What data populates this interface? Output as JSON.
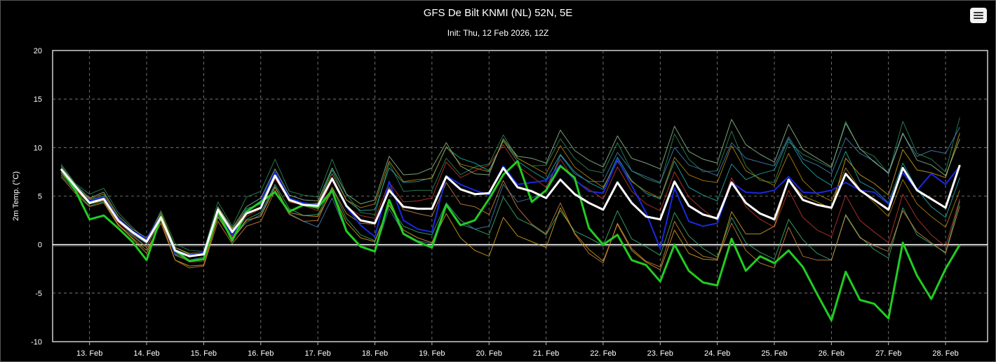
{
  "header": {
    "title": "GFS De Bilt KNMI (NL) 52N, 5E",
    "subtitle": "Init: Thu, 12 Feb 2026, 12Z"
  },
  "menu": {
    "icon": "hamburger-menu-icon"
  },
  "chart_data": {
    "type": "line",
    "ylabel": "2m Temp. (°C)",
    "xlabel": "",
    "ylim": [
      -10,
      20
    ],
    "yticks": [
      -10,
      -5,
      0,
      5,
      10,
      15,
      20
    ],
    "x_unit": "6-hourly steps from 12 Feb 2026 12Z",
    "xticks": [
      {
        "label": "13. Feb",
        "step": 2
      },
      {
        "label": "14. Feb",
        "step": 6
      },
      {
        "label": "15. Feb",
        "step": 10
      },
      {
        "label": "16. Feb",
        "step": 14
      },
      {
        "label": "17. Feb",
        "step": 18
      },
      {
        "label": "18. Feb",
        "step": 22
      },
      {
        "label": "19. Feb",
        "step": 26
      },
      {
        "label": "20. Feb",
        "step": 30
      },
      {
        "label": "21. Feb",
        "step": 34
      },
      {
        "label": "22. Feb",
        "step": 38
      },
      {
        "label": "23. Feb",
        "step": 42
      },
      {
        "label": "24. Feb",
        "step": 46
      },
      {
        "label": "25. Feb",
        "step": 50
      },
      {
        "label": "26. Feb",
        "step": 54
      },
      {
        "label": "27. Feb",
        "step": 58
      },
      {
        "label": "28. Feb",
        "step": 62
      }
    ],
    "grid": true,
    "zero_line": true,
    "background": "#000000",
    "series": [
      {
        "role": "mean",
        "color": "#ffffff",
        "values": [
          7.8,
          6.0,
          4.3,
          4.7,
          2.5,
          1.3,
          0.3,
          2.8,
          -0.6,
          -1.2,
          -1.0,
          3.6,
          1.3,
          3.2,
          3.8,
          7.1,
          4.6,
          4.1,
          4.0,
          6.8,
          4.0,
          2.5,
          2.2,
          5.6,
          3.9,
          3.7,
          3.7,
          7.0,
          5.7,
          5.2,
          5.3,
          7.9,
          5.9,
          5.5,
          4.8,
          6.7,
          5.2,
          4.3,
          3.6,
          6.4,
          4.3,
          2.9,
          2.6,
          6.5,
          4.0,
          3.1,
          2.7,
          6.4,
          4.3,
          3.2,
          2.6,
          6.7,
          4.6,
          4.1,
          3.8,
          7.3,
          5.6,
          4.6,
          3.6,
          7.9,
          5.6,
          4.7,
          3.8,
          8.2
        ]
      },
      {
        "role": "control",
        "color": "#22cc22",
        "values": [
          7.8,
          5.6,
          2.6,
          3.0,
          1.7,
          0.3,
          -1.6,
          2.9,
          -0.6,
          -1.7,
          -1.5,
          3.4,
          0.4,
          3.4,
          4.4,
          5.4,
          3.4,
          4.1,
          3.8,
          5.6,
          1.4,
          -0.2,
          -0.7,
          4.6,
          1.1,
          0.3,
          -0.3,
          4.1,
          2.0,
          2.5,
          4.7,
          7.2,
          8.6,
          4.4,
          5.6,
          8.1,
          6.9,
          1.7,
          0.0,
          1.0,
          -1.6,
          -2.1,
          -3.8,
          0.0,
          -2.7,
          -3.9,
          -4.2,
          0.6,
          -2.7,
          -1.2,
          -1.9,
          -0.6,
          -2.3,
          -5.1,
          -7.8,
          -2.8,
          -5.7,
          -6.1,
          -7.6,
          0.2,
          -3.2,
          -5.6,
          -2.5,
          0.0
        ]
      },
      {
        "role": "operational",
        "color": "#1a2be8",
        "values": [
          7.6,
          5.9,
          4.5,
          4.9,
          2.7,
          1.4,
          0.6,
          3.0,
          -0.9,
          -1.1,
          -0.8,
          3.5,
          1.0,
          3.3,
          4.5,
          7.5,
          4.8,
          4.3,
          4.1,
          6.9,
          3.9,
          2.0,
          0.8,
          6.5,
          2.5,
          1.6,
          1.3,
          7.1,
          6.2,
          5.6,
          5.1,
          8.1,
          6.2,
          6.4,
          6.6,
          8.2,
          6.7,
          5.5,
          5.3,
          8.8,
          6.1,
          3.3,
          -0.4,
          5.8,
          2.4,
          1.9,
          2.2,
          6.4,
          5.4,
          5.3,
          5.6,
          7.0,
          5.4,
          5.3,
          5.6,
          6.4,
          5.6,
          5.4,
          4.2,
          7.4,
          5.6,
          7.3,
          6.2,
          8.1
        ]
      },
      {
        "role": "member",
        "color": "#2e8b57",
        "values": [
          8.3,
          6.3,
          5.2,
          5.8,
          3.3,
          1.8,
          0.4,
          3.5,
          0.1,
          -0.6,
          -0.7,
          4.4,
          1.9,
          4.9,
          5.5,
          8.8,
          5.5,
          5.1,
          4.9,
          8.8,
          5.2,
          3.3,
          3.1,
          8.4,
          5.5,
          5.6,
          5.6,
          8.9,
          7.2,
          8.0,
          8.3,
          11.3,
          8.9,
          8.1,
          8.2,
          10.9,
          8.9,
          7.7,
          7.4,
          10.5,
          7.6,
          6.8,
          6.3,
          11.4,
          8.8,
          7.5,
          7.6,
          11.7,
          8.1,
          6.6,
          6.4,
          10.6,
          9.3,
          8.6,
          7.9,
          12.7,
          9.8,
          9.1,
          7.3,
          12.7,
          9.4,
          8.8,
          7.5,
          13.1
        ]
      },
      {
        "role": "member",
        "color": "#3cb371",
        "values": [
          7.2,
          5.5,
          4.0,
          4.4,
          2.0,
          0.9,
          -0.3,
          2.7,
          -1.1,
          -1.7,
          -1.5,
          2.8,
          0.7,
          2.6,
          3.3,
          6.2,
          3.7,
          3.0,
          3.1,
          5.9,
          2.7,
          1.0,
          0.4,
          4.0,
          1.9,
          1.3,
          1.0,
          4.3,
          2.5,
          1.6,
          1.0,
          4.9,
          2.7,
          2.0,
          1.0,
          3.5,
          1.4,
          0.7,
          -0.1,
          3.5,
          0.6,
          -0.2,
          -1.1,
          3.3,
          0.9,
          -0.4,
          -1.3,
          2.8,
          0.2,
          -0.8,
          -1.5,
          2.6,
          0.5,
          -0.9,
          -1.6,
          3.1,
          0.8,
          -0.5,
          -1.4,
          3.8,
          1.0,
          0.1,
          -0.8,
          4.5
        ]
      },
      {
        "role": "member",
        "color": "#20b2aa",
        "values": [
          7.9,
          6.1,
          4.6,
          5.0,
          2.6,
          1.2,
          0.2,
          3.0,
          -0.5,
          -1.2,
          -1.1,
          3.7,
          1.5,
          3.7,
          4.2,
          7.4,
          4.7,
          4.3,
          4.2,
          7.7,
          4.6,
          3.5,
          3.6,
          7.9,
          6.4,
          6.5,
          6.9,
          10.0,
          8.9,
          8.4,
          7.6,
          10.7,
          8.6,
          7.6,
          6.7,
          9.3,
          7.5,
          6.4,
          5.7,
          9.0,
          6.6,
          5.3,
          4.7,
          8.6,
          5.9,
          5.1,
          4.5,
          8.3,
          6.7,
          7.3,
          7.7,
          10.9,
          8.4,
          7.0,
          6.1,
          9.6,
          6.5,
          5.7,
          4.3,
          8.4,
          5.7,
          3.9,
          2.8,
          6.9
        ]
      },
      {
        "role": "member",
        "color": "#4682b4",
        "values": [
          7.5,
          5.8,
          4.4,
          4.8,
          2.4,
          1.1,
          0.1,
          2.6,
          -1.0,
          -1.6,
          -1.3,
          3.1,
          0.6,
          2.3,
          3.1,
          6.0,
          3.2,
          2.4,
          1.8,
          4.8,
          1.3,
          -0.3,
          -0.6,
          3.7,
          1.2,
          0.4,
          0.1,
          4.3,
          2.1,
          1.6,
          1.9,
          6.2,
          4.4,
          4.8,
          5.5,
          9.2,
          7.3,
          6.5,
          6.5,
          9.5,
          7.6,
          7.0,
          6.4,
          10.0,
          8.2,
          7.7,
          7.1,
          10.5,
          8.9,
          8.5,
          8.1,
          11.1,
          8.8,
          8.2,
          7.3,
          11.0,
          9.4,
          8.6,
          7.3,
          11.4,
          9.1,
          9.7,
          9.4,
          12.1
        ]
      },
      {
        "role": "member",
        "color": "#daa520",
        "values": [
          7.4,
          5.7,
          4.2,
          4.5,
          2.1,
          0.6,
          -0.9,
          2.5,
          -1.6,
          -2.2,
          -2.1,
          2.9,
          0.5,
          2.5,
          2.9,
          5.9,
          3.3,
          3.0,
          2.9,
          5.5,
          2.3,
          0.7,
          0.3,
          4.1,
          1.5,
          0.7,
          0.2,
          3.2,
          0.7,
          -0.6,
          -1.2,
          2.8,
          0.9,
          0.3,
          -0.3,
          3.8,
          1.2,
          -0.5,
          -1.7,
          2.1,
          -0.6,
          -1.8,
          -2.6,
          1.5,
          -0.9,
          -1.5,
          -1.6,
          3.4,
          1.1,
          1.1,
          1.9,
          6.7,
          5.0,
          4.4,
          3.7,
          8.9,
          7.2,
          6.3,
          5.1,
          9.8,
          7.7,
          7.4,
          6.9,
          11.5
        ]
      },
      {
        "role": "member",
        "color": "#b8860b",
        "values": [
          7.7,
          5.9,
          4.7,
          5.2,
          2.8,
          1.4,
          0.5,
          3.3,
          -0.3,
          -0.9,
          -0.8,
          3.8,
          1.6,
          3.5,
          4.3,
          7.0,
          4.4,
          4.1,
          4.3,
          7.3,
          4.6,
          3.8,
          4.2,
          8.6,
          6.5,
          6.7,
          6.8,
          10.1,
          8.3,
          7.9,
          7.5,
          10.7,
          8.9,
          8.1,
          7.3,
          10.2,
          8.0,
          6.9,
          5.9,
          8.6,
          6.5,
          5.5,
          4.8,
          9.0,
          7.2,
          6.6,
          6.4,
          10.2,
          7.6,
          6.8,
          6.1,
          9.4,
          6.6,
          5.2,
          4.5,
          7.9,
          5.7,
          4.3,
          2.9,
          6.7,
          4.2,
          2.9,
          1.8,
          5.6
        ]
      },
      {
        "role": "member",
        "color": "#cd853f",
        "values": [
          7.0,
          5.3,
          3.9,
          4.3,
          2.0,
          0.7,
          -0.6,
          2.2,
          -1.6,
          -2.4,
          -2.2,
          2.4,
          0.1,
          1.9,
          2.4,
          5.6,
          3.1,
          2.4,
          2.5,
          5.9,
          3.2,
          2.2,
          2.1,
          5.9,
          3.6,
          3.2,
          2.9,
          6.4,
          4.2,
          3.9,
          3.1,
          6.6,
          3.8,
          2.1,
          1.1,
          4.3,
          1.1,
          -0.9,
          -1.9,
          2.2,
          -0.4,
          -1.7,
          -2.3,
          2.4,
          -0.1,
          -1.2,
          -1.5,
          2.2,
          -0.6,
          -1.9,
          -2.4,
          1.8,
          -1.2,
          -1.6,
          -1.6,
          3.0,
          0.7,
          -0.1,
          -0.7,
          3.5,
          1.3,
          0.2,
          -0.9,
          4.0
        ]
      },
      {
        "role": "member",
        "color": "#c0392b",
        "values": [
          7.6,
          5.8,
          4.3,
          4.6,
          2.3,
          1.0,
          -0.2,
          2.6,
          -0.9,
          -1.8,
          -1.7,
          3.2,
          0.8,
          2.9,
          3.7,
          6.8,
          4.5,
          4.0,
          3.5,
          6.6,
          3.9,
          3.0,
          2.7,
          6.4,
          4.4,
          4.5,
          4.8,
          8.5,
          6.9,
          7.6,
          8.2,
          10.3,
          8.1,
          7.0,
          5.9,
          8.8,
          6.6,
          5.7,
          4.7,
          8.0,
          5.5,
          4.2,
          3.5,
          7.5,
          4.9,
          3.6,
          2.5,
          6.9,
          3.9,
          2.6,
          1.8,
          5.6,
          2.8,
          1.5,
          0.8,
          5.1,
          2.5,
          1.3,
          0.2,
          5.2,
          2.7,
          1.0,
          -0.2,
          4.7
        ]
      },
      {
        "role": "member",
        "color": "#8fbc8f",
        "values": [
          8.1,
          6.2,
          4.8,
          5.4,
          3.0,
          1.6,
          0.7,
          3.1,
          -0.3,
          -1.0,
          -0.9,
          3.9,
          1.7,
          3.9,
          4.8,
          7.8,
          5.1,
          4.6,
          4.5,
          7.9,
          5.2,
          4.2,
          4.6,
          9.1,
          7.2,
          7.3,
          7.9,
          10.5,
          8.1,
          7.3,
          7.2,
          10.9,
          9.1,
          8.9,
          8.4,
          11.8,
          9.7,
          8.7,
          8.0,
          11.2,
          8.9,
          8.4,
          7.8,
          12.2,
          9.6,
          8.8,
          8.4,
          12.9,
          10.3,
          9.3,
          8.5,
          12.4,
          9.8,
          8.9,
          8.0,
          12.5,
          9.9,
          8.5,
          7.4,
          11.5,
          8.7,
          8.2,
          7.1,
          10.9
        ]
      }
    ]
  }
}
